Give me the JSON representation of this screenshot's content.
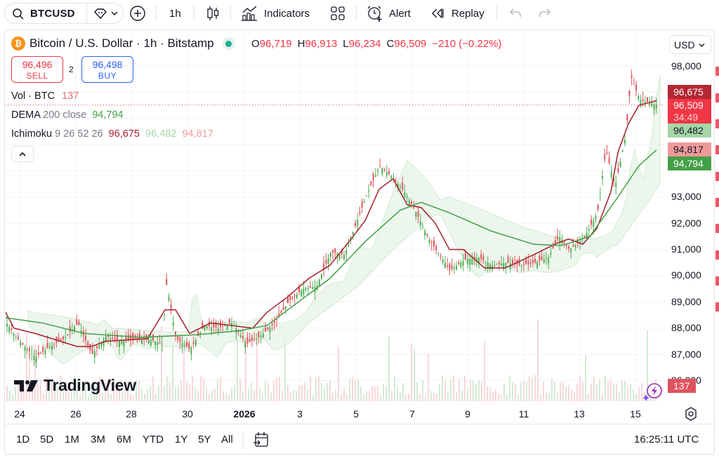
{
  "toolbar": {
    "symbol": "BTCUSD",
    "interval": "1h",
    "indicators_label": "Indicators",
    "alert_label": "Alert",
    "replay_label": "Replay"
  },
  "legend": {
    "title": "Bitcoin / U.S. Dollar · 1h · Bitstamp",
    "ohlc": {
      "o_key": "O",
      "o": "96,719",
      "h_key": "H",
      "h": "96,913",
      "l_key": "L",
      "l": "96,234",
      "c_key": "C",
      "c": "96,509",
      "change": "−210 (−0.22%)"
    },
    "sell": {
      "price": "96,496",
      "label": "SELL"
    },
    "buy": {
      "price": "96,498",
      "label": "BUY"
    },
    "spread": "2",
    "volume": {
      "name": "Vol · BTC",
      "value": "137"
    },
    "dema": {
      "name": "DEMA",
      "params": "200 close",
      "value": "94,794"
    },
    "ichimoku": {
      "name": "Ichimoku",
      "params": "9 26 52 26",
      "v1": "96,675",
      "v2": "96,482",
      "v3": "94,817"
    }
  },
  "price_axis": {
    "currency": "USD",
    "labels": [
      "98,000",
      "93,000",
      "92,000",
      "91,000",
      "90,000",
      "89,000",
      "88,000",
      "87,000",
      "86,000"
    ],
    "tags": [
      {
        "value": "96,675",
        "color": "#b22833"
      },
      {
        "value": "96,509",
        "sub": "34:49",
        "color": "#f23645"
      },
      {
        "value": "96,482",
        "color": "#a5d6a7"
      },
      {
        "value": "94,817",
        "color": "#ef9a9a"
      },
      {
        "value": "94,794",
        "color": "#43a047"
      }
    ],
    "volume_tag": "137"
  },
  "time_axis": {
    "labels": [
      "24",
      "26",
      "28",
      "30",
      "2026",
      "3",
      "5",
      "7",
      "9",
      "11",
      "13",
      "15"
    ]
  },
  "bottom_bar": {
    "ranges": [
      "1D",
      "5D",
      "1M",
      "3M",
      "6M",
      "YTD",
      "1Y",
      "5Y",
      "All"
    ],
    "clock": "16:25:11 UTC"
  },
  "branding": {
    "logo_text": "TradingView"
  },
  "colors": {
    "up": "#4caf50",
    "down": "#e0525d",
    "dema": "#43a047",
    "tenkan": "#a61e2b",
    "cloud_up": "#e8f5e9",
    "cloud_down": "#fde7e9"
  },
  "chart_data": {
    "type": "candlestick",
    "title": "Bitcoin / U.S. Dollar · 1h · Bitstamp",
    "ylabel": "USD",
    "ylim": [
      85500,
      98500
    ],
    "x_ticks": [
      "24",
      "26",
      "28",
      "30",
      "2026",
      "3",
      "5",
      "7",
      "9",
      "11",
      "13",
      "15"
    ],
    "close_path": [
      [
        8,
        88200
      ],
      [
        30,
        87400
      ],
      [
        50,
        86900
      ],
      [
        70,
        87300
      ],
      [
        90,
        87600
      ],
      [
        110,
        88200
      ],
      [
        130,
        87000
      ],
      [
        150,
        87700
      ],
      [
        170,
        87500
      ],
      [
        190,
        87600
      ],
      [
        210,
        87600
      ],
      [
        230,
        87400
      ],
      [
        236,
        89700
      ],
      [
        250,
        87600
      ],
      [
        270,
        87200
      ],
      [
        290,
        88100
      ],
      [
        310,
        88000
      ],
      [
        330,
        88200
      ],
      [
        350,
        87400
      ],
      [
        370,
        87700
      ],
      [
        390,
        88200
      ],
      [
        410,
        89000
      ],
      [
        430,
        89500
      ],
      [
        450,
        89600
      ],
      [
        470,
        90900
      ],
      [
        490,
        90800
      ],
      [
        505,
        91900
      ],
      [
        520,
        93000
      ],
      [
        540,
        94200
      ],
      [
        560,
        93700
      ],
      [
        575,
        93200
      ],
      [
        590,
        92500
      ],
      [
        610,
        91400
      ],
      [
        625,
        90800
      ],
      [
        640,
        90200
      ],
      [
        660,
        90600
      ],
      [
        680,
        90700
      ],
      [
        700,
        90400
      ],
      [
        720,
        90500
      ],
      [
        740,
        90400
      ],
      [
        760,
        90500
      ],
      [
        780,
        90700
      ],
      [
        795,
        91500
      ],
      [
        810,
        91000
      ],
      [
        830,
        91400
      ],
      [
        850,
        92400
      ],
      [
        862,
        94800
      ],
      [
        875,
        93400
      ],
      [
        890,
        95300
      ],
      [
        898,
        97600
      ],
      [
        910,
        96700
      ],
      [
        925,
        96600
      ],
      [
        935,
        96509
      ]
    ],
    "dema_path": [
      [
        8,
        88400
      ],
      [
        60,
        88200
      ],
      [
        120,
        87800
      ],
      [
        200,
        87650
      ],
      [
        280,
        87750
      ],
      [
        340,
        87900
      ],
      [
        380,
        88100
      ],
      [
        420,
        88900
      ],
      [
        470,
        89900
      ],
      [
        520,
        91300
      ],
      [
        570,
        92500
      ],
      [
        600,
        92800
      ],
      [
        640,
        92400
      ],
      [
        700,
        91700
      ],
      [
        760,
        91200
      ],
      [
        800,
        91150
      ],
      [
        840,
        91500
      ],
      [
        880,
        93000
      ],
      [
        910,
        94200
      ],
      [
        935,
        94794
      ]
    ],
    "tenkan_path": [
      [
        8,
        88600
      ],
      [
        20,
        88000
      ],
      [
        50,
        87800
      ],
      [
        110,
        87300
      ],
      [
        130,
        87300
      ],
      [
        150,
        87500
      ],
      [
        210,
        87600
      ],
      [
        235,
        88700
      ],
      [
        250,
        88700
      ],
      [
        270,
        87800
      ],
      [
        300,
        88200
      ],
      [
        330,
        88100
      ],
      [
        360,
        88000
      ],
      [
        380,
        88600
      ],
      [
        410,
        89200
      ],
      [
        440,
        89900
      ],
      [
        470,
        90400
      ],
      [
        500,
        91400
      ],
      [
        520,
        92100
      ],
      [
        540,
        93300
      ],
      [
        560,
        93700
      ],
      [
        580,
        92700
      ],
      [
        600,
        92600
      ],
      [
        620,
        92000
      ],
      [
        640,
        91000
      ],
      [
        660,
        91000
      ],
      [
        690,
        90300
      ],
      [
        720,
        90300
      ],
      [
        760,
        90800
      ],
      [
        790,
        91200
      ],
      [
        810,
        91400
      ],
      [
        830,
        91200
      ],
      [
        850,
        91800
      ],
      [
        870,
        93200
      ],
      [
        880,
        94700
      ],
      [
        895,
        95800
      ],
      [
        910,
        96500
      ],
      [
        935,
        96675
      ]
    ],
    "volume_bars_count": 230
  }
}
